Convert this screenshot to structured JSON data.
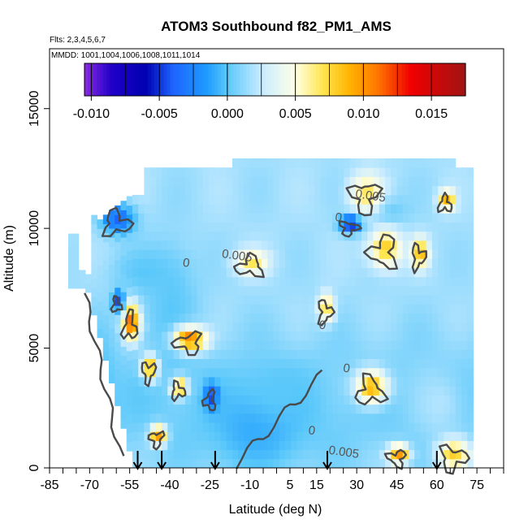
{
  "chart_data": {
    "type": "heatmap",
    "title": "ATOM3 Southbound f82_PM1_AMS",
    "subtitle_flights": "Flts: 2,3,4,5,6,7",
    "subtitle_dates": "MMDD: 1001,1004,1006,1008,1011,1014",
    "xlabel": "Latitude (deg N)",
    "ylabel": "Altitude (m)",
    "xlim": [
      -85,
      85
    ],
    "ylim": [
      0,
      17500
    ],
    "x_ticks": [
      "-85",
      "-70",
      "-55",
      "-40",
      "-25",
      "-10",
      "5",
      "15",
      "30",
      "45",
      "60",
      "75"
    ],
    "x_tick_values": [
      -85,
      -70,
      -55,
      -40,
      -25,
      -10,
      5,
      15,
      30,
      45,
      60,
      75
    ],
    "y_ticks": [
      "0",
      "5000",
      "10000",
      "15000"
    ],
    "y_tick_values": [
      0,
      5000,
      10000,
      15000
    ],
    "colorbar": {
      "range": [
        -0.0105,
        0.0175
      ],
      "ticks": [
        "-0.010",
        "-0.005",
        "0.000",
        "0.005",
        "0.010",
        "0.015"
      ],
      "tick_values": [
        -0.01,
        -0.005,
        0.0,
        0.005,
        0.01,
        0.015
      ],
      "stops": [
        {
          "value": -0.0105,
          "color": "#8a2be2"
        },
        {
          "value": -0.0085,
          "color": "#2000c8"
        },
        {
          "value": -0.006,
          "color": "#0000b0"
        },
        {
          "value": -0.004,
          "color": "#1e64ff"
        },
        {
          "value": -0.0015,
          "color": "#1e9bff"
        },
        {
          "value": 0.0,
          "color": "#5ac8fa"
        },
        {
          "value": 0.0025,
          "color": "#c8ebff"
        },
        {
          "value": 0.005,
          "color": "#ffffe6"
        },
        {
          "value": 0.007,
          "color": "#ffe650"
        },
        {
          "value": 0.009,
          "color": "#ffb400"
        },
        {
          "value": 0.011,
          "color": "#ff7800"
        },
        {
          "value": 0.0135,
          "color": "#f00000"
        },
        {
          "value": 0.0175,
          "color": "#a01414"
        }
      ]
    },
    "contour_labels": [
      {
        "text": "0.005",
        "x": 35,
        "y": 11200
      },
      {
        "text": "0.005",
        "x": -15,
        "y": 8700
      },
      {
        "text": "0.005",
        "x": 25,
        "y": 500
      },
      {
        "text": "0",
        "x": -34,
        "y": 8400
      },
      {
        "text": "0",
        "x": 17,
        "y": 5800
      },
      {
        "text": "0",
        "x": 26,
        "y": 4000
      },
      {
        "text": "0",
        "x": 13,
        "y": 1400
      },
      {
        "text": "0",
        "x": 23,
        "y": 10300
      }
    ],
    "flight_markers_lat": [
      -52,
      -43,
      -23,
      19,
      60
    ],
    "field_blobs": [
      {
        "x": -40,
        "y": 6300,
        "rx": 10,
        "ry": 3000,
        "v": 0.0
      },
      {
        "x": -8,
        "y": 1500,
        "rx": 18,
        "ry": 1800,
        "v": -0.001
      },
      {
        "x": 0,
        "y": 3000,
        "rx": 12,
        "ry": 1200,
        "v": 0.0
      },
      {
        "x": -50,
        "y": 8000,
        "rx": 12,
        "ry": 1000,
        "v": 0.0
      },
      {
        "x": 40,
        "y": 10500,
        "rx": 8,
        "ry": 700,
        "v": 0.0
      },
      {
        "x": -60,
        "y": 10200,
        "rx": 6,
        "ry": 600,
        "v": -0.004
      },
      {
        "x": -68,
        "y": 2500,
        "rx": 6,
        "ry": 2500,
        "v": -0.001
      },
      {
        "x": 60,
        "y": 2500,
        "rx": 10,
        "ry": 1500,
        "v": 0.002
      },
      {
        "x": 66,
        "y": 400,
        "rx": 6,
        "ry": 600,
        "v": 0.008
      },
      {
        "x": 35,
        "y": 3200,
        "rx": 6,
        "ry": 700,
        "v": 0.009
      },
      {
        "x": 40,
        "y": 9000,
        "rx": 6,
        "ry": 800,
        "v": 0.008
      },
      {
        "x": 33,
        "y": 11300,
        "rx": 6,
        "ry": 800,
        "v": 0.007
      },
      {
        "x": 18,
        "y": 6500,
        "rx": 3,
        "ry": 600,
        "v": 0.007
      },
      {
        "x": -55,
        "y": 5900,
        "rx": 3,
        "ry": 700,
        "v": 0.012
      },
      {
        "x": -33,
        "y": 5200,
        "rx": 6,
        "ry": 500,
        "v": 0.011
      },
      {
        "x": -48,
        "y": 4000,
        "rx": 3,
        "ry": 500,
        "v": 0.009
      },
      {
        "x": -37,
        "y": 3200,
        "rx": 3,
        "ry": 400,
        "v": 0.009
      },
      {
        "x": -10,
        "y": 8400,
        "rx": 6,
        "ry": 500,
        "v": 0.007
      },
      {
        "x": 45,
        "y": 400,
        "rx": 4,
        "ry": 400,
        "v": 0.01
      },
      {
        "x": 27,
        "y": 10000,
        "rx": 4,
        "ry": 350,
        "v": -0.006
      },
      {
        "x": -60,
        "y": 6800,
        "rx": 2,
        "ry": 400,
        "v": -0.005
      },
      {
        "x": -25,
        "y": 2800,
        "rx": 2.5,
        "ry": 500,
        "v": -0.005
      },
      {
        "x": -45,
        "y": 1200,
        "rx": 3,
        "ry": 400,
        "v": 0.01
      },
      {
        "x": 53,
        "y": 8800,
        "rx": 3,
        "ry": 600,
        "v": 0.009
      },
      {
        "x": 63,
        "y": 11000,
        "rx": 3,
        "ry": 400,
        "v": 0.009
      }
    ]
  }
}
